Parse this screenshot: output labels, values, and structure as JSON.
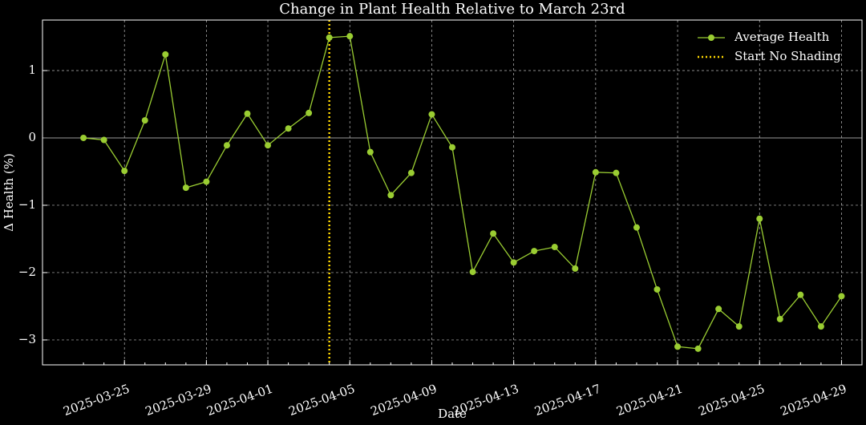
{
  "chart_data": {
    "type": "line",
    "title": "Change in Plant Health Relative to March 23rd",
    "xlabel": "Date",
    "ylabel": "Δ Health (%)",
    "x": [
      "2025-03-23",
      "2025-03-24",
      "2025-03-25",
      "2025-03-26",
      "2025-03-27",
      "2025-03-28",
      "2025-03-29",
      "2025-03-30",
      "2025-03-31",
      "2025-04-01",
      "2025-04-02",
      "2025-04-03",
      "2025-04-04",
      "2025-04-05",
      "2025-04-06",
      "2025-04-07",
      "2025-04-08",
      "2025-04-09",
      "2025-04-10",
      "2025-04-11",
      "2025-04-12",
      "2025-04-13",
      "2025-04-14",
      "2025-04-15",
      "2025-04-16",
      "2025-04-17",
      "2025-04-18",
      "2025-04-19",
      "2025-04-20",
      "2025-04-21",
      "2025-04-22",
      "2025-04-23",
      "2025-04-24",
      "2025-04-25",
      "2025-04-26",
      "2025-04-27",
      "2025-04-28",
      "2025-04-29"
    ],
    "series": [
      {
        "name": "Average Health",
        "color": "#9acd32",
        "values": [
          0.0,
          -0.03,
          -0.49,
          0.26,
          1.24,
          -0.74,
          -0.65,
          -0.11,
          0.36,
          -0.11,
          0.14,
          0.37,
          1.49,
          1.51,
          -0.21,
          -0.85,
          -0.52,
          0.35,
          -0.14,
          -1.99,
          -1.42,
          -1.85,
          -1.68,
          -1.62,
          -1.94,
          -0.51,
          -0.52,
          -1.33,
          -2.25,
          -3.1,
          -3.13,
          -2.54,
          -2.8,
          -1.2,
          -2.69,
          -2.33,
          -2.8,
          -2.35
        ]
      }
    ],
    "vline": {
      "name": "Start No Shading",
      "x": "2025-04-04",
      "color": "#ffd700"
    },
    "hline": {
      "y": 0,
      "color": "#999999"
    },
    "xlim": [
      "2025-03-21",
      "2025-04-30"
    ],
    "xticks": [
      "2025-03-25",
      "2025-03-29",
      "2025-04-01",
      "2025-04-05",
      "2025-04-09",
      "2025-04-13",
      "2025-04-17",
      "2025-04-21",
      "2025-04-25",
      "2025-04-29"
    ],
    "ylim": [
      -3.37,
      1.75
    ],
    "yticks": [
      {
        "value": -3,
        "label": "−3"
      },
      {
        "value": -2,
        "label": "−2"
      },
      {
        "value": -1,
        "label": "−1"
      },
      0,
      1
    ],
    "grid": true,
    "legend": "upper right"
  }
}
